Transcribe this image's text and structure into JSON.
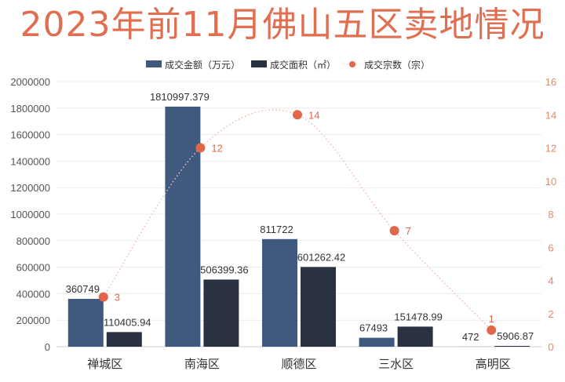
{
  "chart_data": {
    "type": "bar+line",
    "title": "2023年前11月佛山五区卖地情况",
    "categories": [
      "禅城区",
      "南海区",
      "顺德区",
      "三水区",
      "高明区"
    ],
    "series": [
      {
        "name": "成交金额（万元）",
        "type": "bar",
        "axis": "left",
        "color": "#3f5a7e",
        "values": [
          360749,
          1810997.379,
          811722,
          67493,
          472
        ],
        "labels": [
          "360749",
          "1810997.379",
          "811722",
          "67493",
          "472"
        ]
      },
      {
        "name": "成交面积（㎡）",
        "type": "bar",
        "axis": "left",
        "color": "#2a3140",
        "values": [
          110405.94,
          506399.36,
          601262.42,
          151478.99,
          5906.87
        ],
        "labels": [
          "110405.94",
          "506399.36",
          "601262.42",
          "151478.99",
          "5906.87"
        ]
      },
      {
        "name": "成交宗数（宗）",
        "type": "line",
        "axis": "right",
        "color": "#e0674a",
        "line_style": "dotted-smooth",
        "values": [
          3,
          12,
          14,
          7,
          1
        ],
        "labels": [
          "3",
          "12",
          "14",
          "7",
          "1"
        ]
      }
    ],
    "y_left": {
      "range": [
        0,
        2000000
      ],
      "ticks": [
        "0",
        "200000",
        "400000",
        "600000",
        "800000",
        "1000000",
        "1200000",
        "1400000",
        "1600000",
        "1800000",
        "2000000"
      ]
    },
    "y_right": {
      "range": [
        0,
        16
      ],
      "ticks": [
        "0",
        "2",
        "4",
        "6",
        "8",
        "10",
        "12",
        "14",
        "16"
      ],
      "color": "#e08a6a"
    },
    "grid": true,
    "legend": "top-center"
  }
}
